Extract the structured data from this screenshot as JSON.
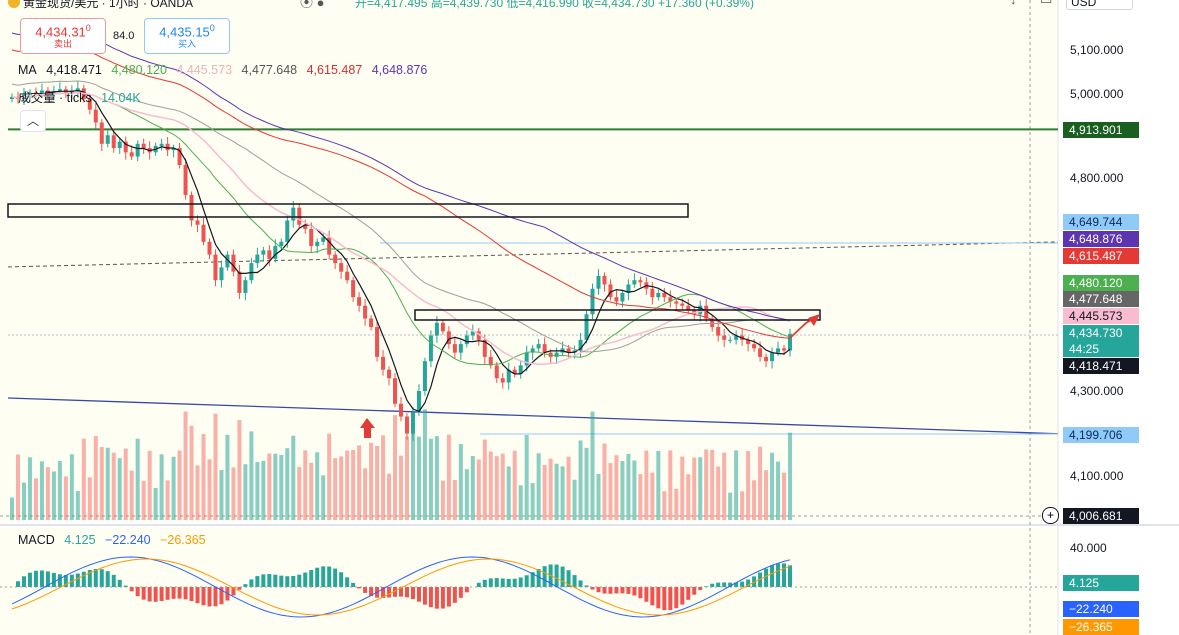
{
  "header": {
    "title": "黄金现货/美元 · 1小时 · OANDA",
    "ohlc": "开=4,417.495 高=4,439.730 低=4,416.990 收=4,434.730 +17.360 (+0.39%)",
    "currency": "USD"
  },
  "trade": {
    "sell_price": "4,434.31",
    "sell_sup": "0",
    "sell_label": "卖出",
    "spread": "84.0",
    "buy_price": "4,435.15",
    "buy_sup": "0",
    "buy_label": "买入"
  },
  "ma_legend": {
    "label": "MA",
    "values": [
      {
        "text": "4,418.471",
        "color": "#131722"
      },
      {
        "text": "4,480.120",
        "color": "#4caf50"
      },
      {
        "text": "4,445.573",
        "color": "#e8b4c0"
      },
      {
        "text": "4,477.648",
        "color": "#555555"
      },
      {
        "text": "4,615.487",
        "color": "#d32f2f"
      },
      {
        "text": "4,648.876",
        "color": "#5e35b1"
      }
    ]
  },
  "volume_legend": {
    "label": "成交量 · ticks",
    "value": "14.04K"
  },
  "macd_legend": {
    "label": "MACD",
    "values": [
      {
        "text": "4.125",
        "color": "#26a69a"
      },
      {
        "text": "−22.240",
        "color": "#2962ff"
      },
      {
        "text": "−26.365",
        "color": "#ff9800"
      }
    ]
  },
  "price_axis": {
    "ticks": [
      "5,100.000",
      "5,000.000",
      "4,800.000",
      "4,300.000",
      "4,100.000"
    ]
  },
  "price_labels": [
    {
      "text": "4,913.901",
      "bg": "#1b5e20"
    },
    {
      "text": "4,649.744",
      "bg": "#90caf9",
      "fg": "#0d2a5a"
    },
    {
      "text": "4,648.876",
      "bg": "#5e35b1"
    },
    {
      "text": "4,615.487",
      "bg": "#e53935"
    },
    {
      "text": "4,480.120",
      "bg": "#4caf50"
    },
    {
      "text": "4,477.648",
      "bg": "#666666"
    },
    {
      "text": "4,445.573",
      "bg": "#f8bbd0",
      "fg": "#131722"
    },
    {
      "text": "4,434.730",
      "bg": "#26a69a"
    },
    {
      "text": "44:25",
      "bg": "#26a69a"
    },
    {
      "text": "4,418.471",
      "bg": "#131722"
    },
    {
      "text": "4,199.706",
      "bg": "#90caf9",
      "fg": "#0d2a5a"
    },
    {
      "text": "4,006.681",
      "bg": "#131722"
    }
  ],
  "macd_axis": {
    "tick": "40.000",
    "labels": [
      {
        "text": "4.125",
        "bg": "#26a69a"
      },
      {
        "text": "−22.240",
        "bg": "#2962ff"
      },
      {
        "text": "−26.365",
        "bg": "#ff9800"
      }
    ]
  },
  "icons": {
    "arrow_up": "arrow-up-icon",
    "collapse": "chevron-up-icon",
    "plus": "plus-icon"
  },
  "chart_data": {
    "type": "candlestick",
    "title": "黄金现货/美元 · 1小时 · OANDA",
    "ylabel": "USD",
    "ylim": [
      4006,
      5180
    ],
    "close": [
      4990,
      4985,
      4995,
      5000,
      4998,
      5005,
      5000,
      5004,
      5008,
      4998,
      5005,
      5010,
      4985,
      4960,
      4930,
      4880,
      4900,
      4870,
      4885,
      4860,
      4850,
      4880,
      4870,
      4860,
      4875,
      4880,
      4865,
      4870,
      4830,
      4760,
      4700,
      4690,
      4650,
      4620,
      4560,
      4590,
      4620,
      4580,
      4530,
      4560,
      4600,
      4620,
      4630,
      4610,
      4640,
      4650,
      4700,
      4730,
      4690,
      4680,
      4640,
      4650,
      4660,
      4620,
      4600,
      4580,
      4560,
      4520,
      4500,
      4470,
      4450,
      4380,
      4350,
      4330,
      4270,
      4240,
      4200,
      4250,
      4300,
      4370,
      4430,
      4460,
      4440,
      4410,
      4390,
      4410,
      4430,
      4440,
      4420,
      4380,
      4360,
      4330,
      4320,
      4350,
      4340,
      4360,
      4390,
      4400,
      4410,
      4390,
      4380,
      4390,
      4400,
      4390,
      4395,
      4420,
      4480,
      4540,
      4570,
      4550,
      4520,
      4510,
      4530,
      4550,
      4560,
      4555,
      4540,
      4520,
      4530,
      4520,
      4510,
      4505,
      4500,
      4490,
      4480,
      4500,
      4470,
      4450,
      4430,
      4420,
      4420,
      4430,
      4420,
      4410,
      4400,
      4380,
      4370,
      4390,
      4400,
      4395,
      4434
    ],
    "volume_max_ticks": 14040,
    "series": [
      {
        "name": "MA",
        "last": 4418.471
      },
      {
        "name": "MA",
        "last": 4480.12
      },
      {
        "name": "MA",
        "last": 4445.573
      },
      {
        "name": "MA",
        "last": 4477.648
      },
      {
        "name": "MA",
        "last": 4615.487
      },
      {
        "name": "MA",
        "last": 4648.876
      }
    ],
    "horizontal_levels": [
      4913.901,
      4199.706
    ],
    "trendline_end": 4649.744,
    "macd": {
      "histogram": 4.125,
      "macd": -22.24,
      "signal": -26.365,
      "tick": 40.0
    }
  }
}
